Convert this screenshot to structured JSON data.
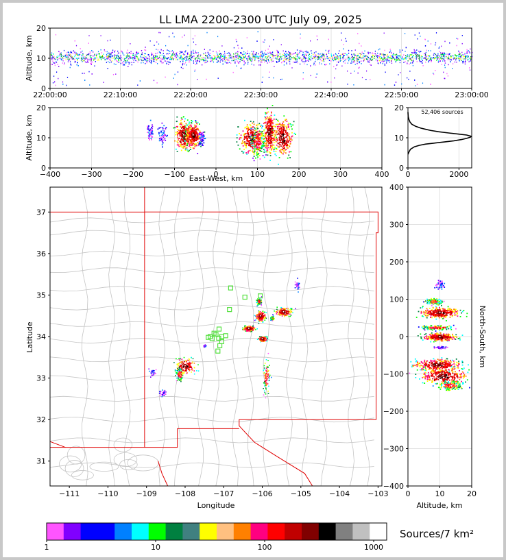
{
  "title": "LL LMA 2200-2300 UTC July 09, 2025",
  "source_count": "52,406 sources",
  "colorbar_label": "Sources/7 km²",
  "chart_data": [
    {
      "id": "time-height",
      "type": "scatter",
      "ylabel": "Altitude, km",
      "ylim": [
        0,
        20
      ],
      "yticks": [
        "0",
        "10",
        "20"
      ],
      "xticks": [
        "22:00:00",
        "22:10:00",
        "22:20:00",
        "22:30:00",
        "22:40:00",
        "22:50:00",
        "23:00:00"
      ],
      "x_range_minutes": [
        0,
        60
      ],
      "grid": true,
      "source_band_km": [
        6,
        16
      ],
      "band_center_km": 10.5
    },
    {
      "id": "east-west-altitude",
      "type": "heatmap",
      "xlabel": "East-West, km",
      "ylabel": "Altitude, km",
      "xlim": [
        -400,
        400
      ],
      "ylim": [
        0,
        20
      ],
      "xticks": [
        "−400",
        "−300",
        "−200",
        "−100",
        "0",
        "100",
        "200",
        "300",
        "400"
      ],
      "yticks": [
        "0",
        "10",
        "20"
      ],
      "grid": true,
      "clusters": [
        {
          "x": -160,
          "z": 12,
          "rx": 8,
          "rz": 3,
          "level": "low"
        },
        {
          "x": -130,
          "z": 11,
          "rx": 10,
          "rz": 3,
          "level": "low"
        },
        {
          "x": -78,
          "z": 11,
          "rx": 22,
          "rz": 5,
          "level": "high"
        },
        {
          "x": -55,
          "z": 11,
          "rx": 18,
          "rz": 4,
          "level": "high"
        },
        {
          "x": -35,
          "z": 10,
          "rx": 8,
          "rz": 2,
          "level": "low"
        },
        {
          "x": 85,
          "z": 10,
          "rx": 30,
          "rz": 5,
          "level": "high"
        },
        {
          "x": 128,
          "z": 12,
          "rx": 14,
          "rz": 7,
          "level": "high"
        },
        {
          "x": 160,
          "z": 10,
          "rx": 22,
          "rz": 6,
          "level": "high"
        },
        {
          "x": 100,
          "z": 9,
          "rx": 15,
          "rz": 5,
          "level": "mid"
        }
      ]
    },
    {
      "id": "altitude-histogram",
      "type": "line",
      "xlim": [
        0,
        2500
      ],
      "ylim": [
        0,
        20
      ],
      "xticks": [
        "0",
        "2000"
      ],
      "yticks": [
        "0",
        "10",
        "20"
      ],
      "x": [
        0,
        50,
        100,
        250,
        450,
        700,
        1000,
        1400,
        1800,
        2100,
        2300,
        2450,
        2480,
        2300,
        2000,
        1600,
        1200,
        900,
        700,
        500,
        300,
        150,
        80,
        40,
        10,
        0
      ],
      "y": [
        4.5,
        5.5,
        6.2,
        7.0,
        7.5,
        7.9,
        8.2,
        8.6,
        9.0,
        9.4,
        9.8,
        10.2,
        10.5,
        10.9,
        11.2,
        11.6,
        12.0,
        12.4,
        12.8,
        13.2,
        13.8,
        14.5,
        15.2,
        16.0,
        17.0,
        18.5
      ]
    },
    {
      "id": "plan-view",
      "type": "heatmap",
      "xlabel": "Longitude",
      "ylabel": "Latitude",
      "xlim": [
        -111.5,
        -102.9
      ],
      "ylim": [
        30.4,
        37.6
      ],
      "xticks": [
        "−111",
        "−110",
        "−109",
        "−108",
        "−107",
        "−106",
        "−105",
        "−104",
        "−103"
      ],
      "yticks": [
        "31",
        "32",
        "33",
        "34",
        "35",
        "36",
        "37"
      ],
      "stations": [
        [
          -106.82,
          35.17
        ],
        [
          -106.45,
          34.95
        ],
        [
          -106.05,
          34.98
        ],
        [
          -106.85,
          34.65
        ],
        [
          -107.2,
          34.05
        ],
        [
          -107.12,
          34.18
        ],
        [
          -107.05,
          34.0
        ],
        [
          -107.13,
          33.96
        ],
        [
          -107.35,
          34.0
        ],
        [
          -107.3,
          33.95
        ],
        [
          -107.25,
          34.08
        ],
        [
          -107.05,
          33.88
        ],
        [
          -106.95,
          34.02
        ],
        [
          -107.1,
          33.78
        ],
        [
          -107.15,
          33.65
        ],
        [
          -107.4,
          33.98
        ]
      ],
      "clusters": [
        {
          "lon": -108.0,
          "lat": 33.3,
          "rx": 0.25,
          "ry": 0.18,
          "level": "high"
        },
        {
          "lon": -108.15,
          "lat": 33.1,
          "rx": 0.1,
          "ry": 0.15,
          "level": "mid"
        },
        {
          "lon": -105.9,
          "lat": 33.05,
          "rx": 0.1,
          "ry": 0.4,
          "level": "mid"
        },
        {
          "lon": -105.45,
          "lat": 34.6,
          "rx": 0.2,
          "ry": 0.1,
          "level": "high"
        },
        {
          "lon": -106.05,
          "lat": 34.5,
          "rx": 0.12,
          "ry": 0.12,
          "level": "high"
        },
        {
          "lon": -106.35,
          "lat": 34.2,
          "rx": 0.15,
          "ry": 0.06,
          "level": "high"
        },
        {
          "lon": -106.0,
          "lat": 33.95,
          "rx": 0.1,
          "ry": 0.06,
          "level": "high"
        },
        {
          "lon": -106.1,
          "lat": 34.85,
          "rx": 0.06,
          "ry": 0.08,
          "level": "mid"
        },
        {
          "lon": -105.1,
          "lat": 35.25,
          "rx": 0.06,
          "ry": 0.12,
          "level": "low"
        },
        {
          "lon": -108.85,
          "lat": 33.15,
          "rx": 0.08,
          "ry": 0.1,
          "level": "low"
        },
        {
          "lon": -108.6,
          "lat": 32.65,
          "rx": 0.08,
          "ry": 0.08,
          "level": "low"
        },
        {
          "lon": -107.5,
          "lat": 33.78,
          "rx": 0.03,
          "ry": 0.03,
          "level": "low"
        },
        {
          "lon": -105.75,
          "lat": 34.45,
          "rx": 0.04,
          "ry": 0.04,
          "level": "mid"
        }
      ]
    },
    {
      "id": "north-south-altitude",
      "type": "heatmap",
      "xlabel": "Altitude, km",
      "ylabel": "North-South, km",
      "xlim": [
        0,
        20
      ],
      "ylim": [
        -400,
        400
      ],
      "xticks": [
        "0",
        "10",
        "20"
      ],
      "yticks": [
        "−400",
        "−300",
        "−200",
        "−100",
        "0",
        "100",
        "200",
        "300",
        "400"
      ],
      "clusters": [
        {
          "z": 10,
          "y": 140,
          "rz": 1.5,
          "ry": 12,
          "level": "low"
        },
        {
          "z": 8,
          "y": 95,
          "rz": 2.5,
          "ry": 8,
          "level": "mid"
        },
        {
          "z": 10,
          "y": 65,
          "rz": 6,
          "ry": 14,
          "level": "high"
        },
        {
          "z": 9,
          "y": 25,
          "rz": 5,
          "ry": 6,
          "level": "mid"
        },
        {
          "z": 10,
          "y": 0,
          "rz": 5,
          "ry": 10,
          "level": "high"
        },
        {
          "z": 10,
          "y": -28,
          "rz": 2,
          "ry": 3,
          "level": "low"
        },
        {
          "z": 9,
          "y": -75,
          "rz": 7,
          "ry": 15,
          "level": "high"
        },
        {
          "z": 11,
          "y": -105,
          "rz": 7,
          "ry": 22,
          "level": "high"
        },
        {
          "z": 13,
          "y": -130,
          "rz": 4,
          "ry": 12,
          "level": "mid"
        }
      ]
    },
    {
      "id": "colorbar",
      "type": "bar",
      "scale": "log",
      "ticks": [
        "1",
        "10",
        "100",
        "1000"
      ],
      "colors": [
        "#ff55ff",
        "#8000ff",
        "#0000ff",
        "#0000ff",
        "#0080ff",
        "#00ffff",
        "#00ff00",
        "#008040",
        "#408080",
        "#ffff00",
        "#ffc080",
        "#ff8000",
        "#ff0080",
        "#ff0000",
        "#c00000",
        "#800000",
        "#000000",
        "#808080",
        "#c0c0c0",
        "#ffffff"
      ]
    }
  ],
  "palette": [
    "#ff55ff",
    "#8000ff",
    "#0000ff",
    "#0080ff",
    "#00ffff",
    "#00ff00",
    "#008040",
    "#ffff00",
    "#ff8000",
    "#ff0080",
    "#ff0000",
    "#c00000",
    "#800000",
    "#000000"
  ]
}
